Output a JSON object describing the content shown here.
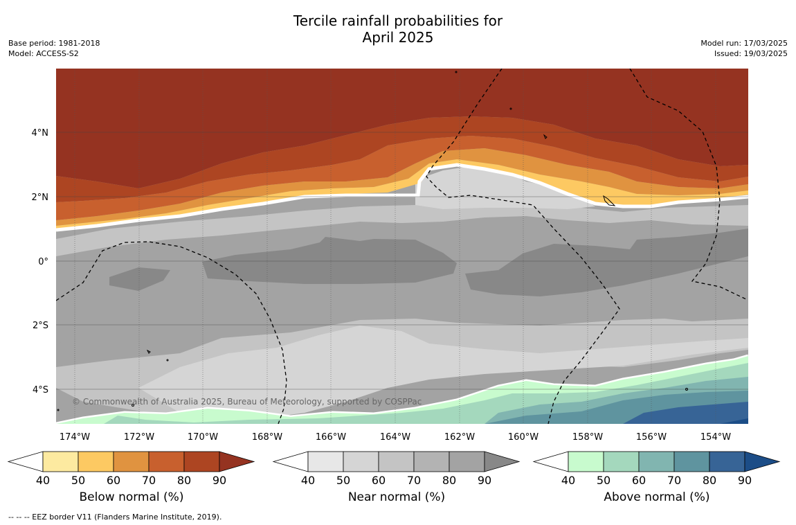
{
  "title": {
    "line1": "Tercile rainfall probabilities for",
    "line2": "April 2025"
  },
  "meta_left": {
    "base_period": "Base period: 1981-2018",
    "model": "Model: ACCESS-S2"
  },
  "meta_right": {
    "model_run": "Model run: 17/03/2025",
    "issued": "Issued: 19/03/2025"
  },
  "map": {
    "lat_labels": [
      "4°N",
      "2°N",
      "0°",
      "2°S",
      "4°S"
    ],
    "lon_labels": [
      "174°W",
      "172°W",
      "170°W",
      "168°W",
      "166°W",
      "164°W",
      "162°W",
      "160°W",
      "158°W",
      "156°W",
      "154°W"
    ],
    "copyright": "© Commonwealth of Australia 2025, Bureau of Meteorology, supported by COSPPac",
    "colors": {
      "below": [
        "#fdeaa0",
        "#fdc962",
        "#e09340",
        "#c8602e",
        "#ad4522",
        "#953321"
      ],
      "near": [
        "#e7e7e7",
        "#d5d5d5",
        "#c4c4c4",
        "#b3b3b3",
        "#a3a3a3",
        "#888888"
      ],
      "above": [
        "#c8fbce",
        "#a4d8bd",
        "#81b5b0",
        "#5f949f",
        "#376496",
        "#1c4d87"
      ]
    }
  },
  "colorbars": [
    {
      "label": "Below normal (%)",
      "ticks": [
        "40",
        "50",
        "60",
        "70",
        "80",
        "90"
      ]
    },
    {
      "label": "Near normal (%)",
      "ticks": [
        "40",
        "50",
        "60",
        "70",
        "80",
        "90"
      ]
    },
    {
      "label": "Above normal (%)",
      "ticks": [
        "40",
        "50",
        "60",
        "70",
        "80",
        "90"
      ]
    }
  ],
  "footer": "--  --  -- EEZ border V11 (Flanders Marine Institute, 2019)."
}
